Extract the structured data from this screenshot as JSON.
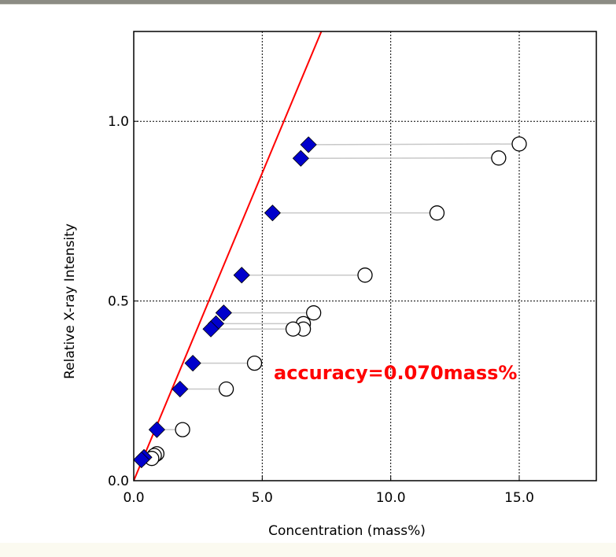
{
  "chart_data": {
    "type": "scatter",
    "xlabel": "Concentration (mass%)",
    "ylabel": "Relative X-ray Intensity",
    "xlim": [
      0,
      18
    ],
    "ylim": [
      0,
      1.25
    ],
    "xticks": [
      0,
      5,
      10,
      15
    ],
    "xtick_labels": [
      "0.0",
      "5.0",
      "10.0",
      "15.0"
    ],
    "yticks": [
      0,
      0.5,
      1.0
    ],
    "ytick_labels": [
      "0.0",
      "0.5",
      "1.0"
    ],
    "grid": true,
    "annotation": "accuracy=0.070mass%",
    "calibration_line": {
      "color": "#ff0000",
      "x": [
        0,
        7.3
      ],
      "y": [
        0,
        1.25
      ]
    },
    "series": [
      {
        "marker": "diamond",
        "color": "#0000cc",
        "points": [
          {
            "x": 6.8,
            "y": 0.935
          },
          {
            "x": 6.5,
            "y": 0.897
          },
          {
            "x": 5.4,
            "y": 0.745
          },
          {
            "x": 4.2,
            "y": 0.572
          },
          {
            "x": 3.5,
            "y": 0.467
          },
          {
            "x": 3.2,
            "y": 0.437
          },
          {
            "x": 3.0,
            "y": 0.422
          },
          {
            "x": 2.3,
            "y": 0.327
          },
          {
            "x": 1.8,
            "y": 0.255
          },
          {
            "x": 0.9,
            "y": 0.142
          },
          {
            "x": 0.4,
            "y": 0.065
          },
          {
            "x": 0.3,
            "y": 0.058
          }
        ]
      },
      {
        "marker": "circle",
        "color": "#000000",
        "points": [
          {
            "x": 15.0,
            "y": 0.937
          },
          {
            "x": 14.2,
            "y": 0.898
          },
          {
            "x": 11.8,
            "y": 0.745
          },
          {
            "x": 9.0,
            "y": 0.572
          },
          {
            "x": 7.0,
            "y": 0.467
          },
          {
            "x": 6.6,
            "y": 0.437
          },
          {
            "x": 6.6,
            "y": 0.422
          },
          {
            "x": 6.2,
            "y": 0.422
          },
          {
            "x": 4.7,
            "y": 0.327
          },
          {
            "x": 3.6,
            "y": 0.255
          },
          {
            "x": 1.9,
            "y": 0.142
          },
          {
            "x": 0.9,
            "y": 0.075
          },
          {
            "x": 0.8,
            "y": 0.07
          },
          {
            "x": 0.7,
            "y": 0.062
          }
        ]
      }
    ],
    "connectors": [
      {
        "from": [
          6.8,
          0.935
        ],
        "to": [
          15.0,
          0.937
        ]
      },
      {
        "from": [
          6.5,
          0.897
        ],
        "to": [
          14.2,
          0.898
        ]
      },
      {
        "from": [
          5.4,
          0.745
        ],
        "to": [
          11.8,
          0.745
        ]
      },
      {
        "from": [
          4.2,
          0.572
        ],
        "to": [
          9.0,
          0.572
        ]
      },
      {
        "from": [
          3.5,
          0.467
        ],
        "to": [
          7.0,
          0.467
        ]
      },
      {
        "from": [
          3.2,
          0.437
        ],
        "to": [
          6.6,
          0.437
        ]
      },
      {
        "from": [
          3.0,
          0.422
        ],
        "to": [
          6.6,
          0.422
        ]
      },
      {
        "from": [
          2.3,
          0.327
        ],
        "to": [
          4.7,
          0.327
        ]
      },
      {
        "from": [
          1.8,
          0.255
        ],
        "to": [
          3.6,
          0.255
        ]
      },
      {
        "from": [
          0.9,
          0.142
        ],
        "to": [
          1.9,
          0.142
        ]
      },
      {
        "from": [
          0.4,
          0.065
        ],
        "to": [
          0.9,
          0.075
        ]
      }
    ]
  }
}
